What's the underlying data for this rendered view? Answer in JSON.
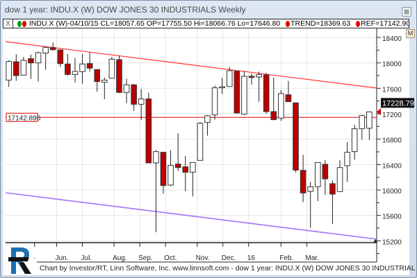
{
  "window": {
    "title": "dow 1 year: INDU.X (W) DOW JONES 30 INDUSTRIALS Weekly",
    "close_icon": "close-icon"
  },
  "infobar": {
    "close": "X",
    "symbol_info": "INDU.X (W)-04/10/15 CL=18057.65 OP=17755.50 Hi=18066.76 Lo=17646.80",
    "trend": "TREND=18369.63",
    "ref": "REF=17142.90",
    "colors": {
      "green": "#00a000",
      "red": "#e00000"
    }
  },
  "m_button": "M",
  "footer": "Chart by Investor/RT, Linn Software, Inc. www.linnsoft.com - dow 1 year: INDU.X (W) DOW JONES 30 INDUSTRIAL",
  "chart_data": {
    "type": "candlestick",
    "title": "",
    "ylim": [
      15100,
      18650
    ],
    "y_ticks": [
      "18400",
      "18000",
      "17600",
      "17200",
      "16800",
      "16400",
      "16000",
      "15600",
      "15200"
    ],
    "x_ticks": [
      {
        "label": "·",
        "bar": 3.5
      },
      {
        "label": "Jun.",
        "bar": 6.5
      },
      {
        "label": "Jul.",
        "bar": 10
      },
      {
        "label": "Aug.",
        "bar": 14.3
      },
      {
        "label": "Sep.",
        "bar": 17.8
      },
      {
        "label": "Oct.",
        "bar": 21.3
      },
      {
        "label": "Nov.",
        "bar": 25.6
      },
      {
        "label": "Dec.",
        "bar": 29.1
      },
      {
        "label": "16",
        "bar": 32.6
      },
      {
        "label": "Feb.",
        "bar": 37
      },
      {
        "label": "Mar.",
        "bar": 40.5
      }
    ],
    "grid": true,
    "colors": {
      "up": "#ffffff",
      "down": "#bb0000",
      "trend_top": "#ff3030",
      "trend_bottom": "#a070ff",
      "ref": "#e00000"
    },
    "ref_line": {
      "value": 17142.896,
      "label": "17142.896"
    },
    "last_price": {
      "value": 17228.79,
      "label": "17228.79"
    },
    "trend_top": [
      18335,
      17604
    ],
    "trend_bottom": [
      15957,
      15226
    ],
    "ohlc": [
      [
        17728,
        18044,
        17622,
        18022
      ],
      [
        18018,
        18135,
        17717,
        17800
      ],
      [
        17808,
        18095,
        17800,
        18040
      ],
      [
        18066,
        18131,
        17746,
        18000
      ],
      [
        18000,
        18178,
        17706,
        18160
      ],
      [
        18153,
        18248,
        17891,
        18244
      ],
      [
        18240,
        18320,
        18189,
        18208
      ],
      [
        18204,
        18204,
        17935,
        17989
      ],
      [
        17982,
        18138,
        17797,
        17818
      ],
      [
        17818,
        18080,
        17688,
        17866
      ],
      [
        17862,
        18138,
        17673,
        17982
      ],
      [
        17989,
        18168,
        17862,
        17917
      ],
      [
        17895,
        17895,
        17546,
        17706
      ],
      [
        17695,
        17768,
        17429,
        17728
      ],
      [
        17757,
        18095,
        17757,
        18058
      ],
      [
        18051,
        18109,
        17524,
        17535
      ],
      [
        17535,
        17753,
        17368,
        17655
      ],
      [
        17655,
        17669,
        17244,
        17349
      ],
      [
        17349,
        17589,
        17099,
        17433
      ],
      [
        17433,
        17531,
        16426,
        16426
      ],
      [
        16426,
        16626,
        15335,
        16604
      ],
      [
        16593,
        16600,
        15942,
        16070
      ],
      [
        16077,
        16626,
        16060,
        16386
      ],
      [
        16408,
        16891,
        16299,
        16353
      ],
      [
        16364,
        16535,
        15982,
        16280
      ],
      [
        16280,
        16433,
        15899,
        16433
      ],
      [
        16466,
        17070,
        16466,
        17051
      ],
      [
        17062,
        17179,
        16855,
        17168
      ],
      [
        17182,
        17644,
        17106,
        17608
      ],
      [
        17615,
        17764,
        17513,
        17625
      ],
      [
        17629,
        17935,
        17622,
        17877
      ],
      [
        17869,
        17877,
        17211,
        17211
      ],
      [
        17193,
        17873,
        17179,
        17789
      ],
      [
        17789,
        17833,
        17658,
        17771
      ],
      [
        17778,
        17862,
        17389,
        17815
      ],
      [
        17811,
        17840,
        17200,
        17233
      ],
      [
        17233,
        17768,
        17106,
        17106
      ],
      [
        17131,
        17571,
        17088,
        17517
      ],
      [
        17498,
        17717,
        17389,
        17389
      ],
      [
        17371,
        17371,
        16277,
        16313
      ],
      [
        16309,
        16553,
        15808,
        15953
      ],
      [
        15979,
        16128,
        15408,
        16051
      ],
      [
        16051,
        16433,
        15826,
        16433
      ],
      [
        16404,
        16469,
        15924,
        16175
      ],
      [
        16099,
        16153,
        15462,
        15935
      ],
      [
        15975,
        16469,
        15975,
        16353
      ],
      [
        16382,
        16753,
        16128,
        16593
      ],
      [
        16604,
        17026,
        16477,
        16964
      ],
      [
        16964,
        17182,
        16793,
        17171
      ],
      [
        16971,
        17237,
        16789,
        17229
      ]
    ]
  }
}
